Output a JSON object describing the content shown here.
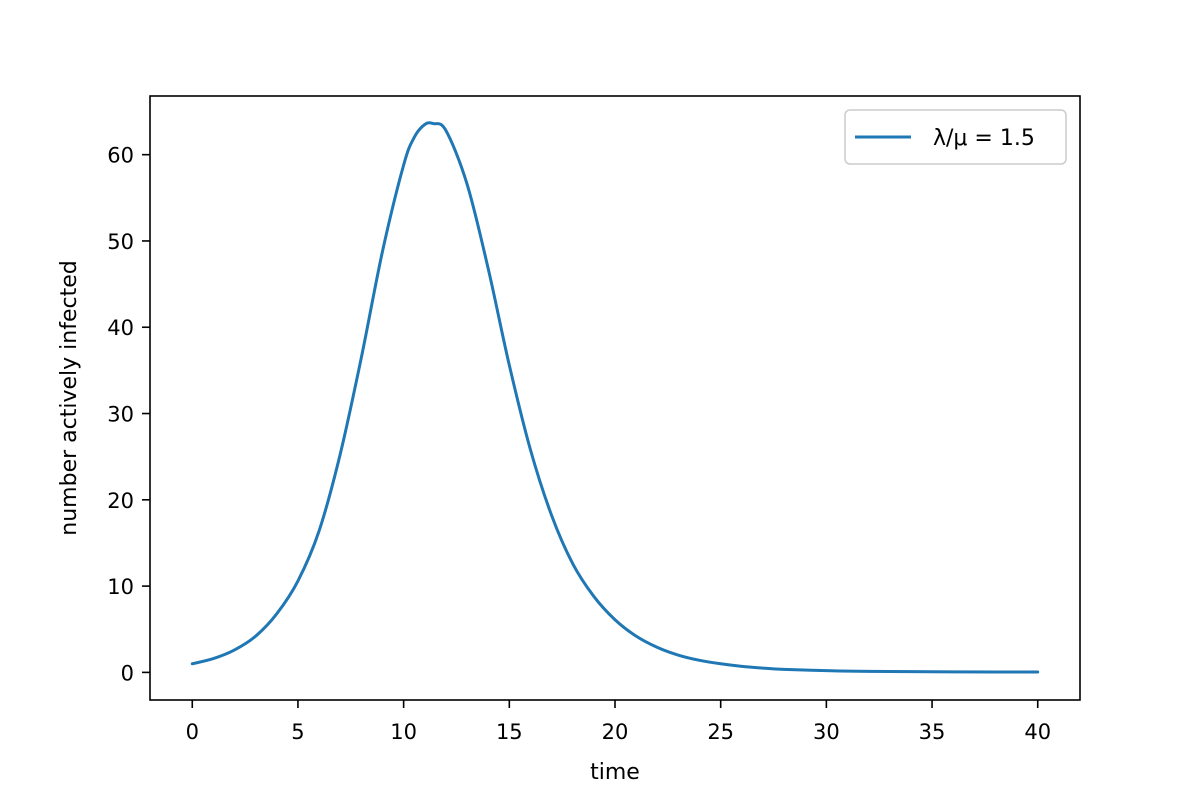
{
  "chart_data": {
    "type": "line",
    "title": "",
    "xlabel": "time",
    "ylabel": "number actively infected",
    "xlim": [
      -2,
      42
    ],
    "ylim": [
      -3.2,
      66.8
    ],
    "xticks": [
      0,
      5,
      10,
      15,
      20,
      25,
      30,
      35,
      40
    ],
    "yticks": [
      0,
      10,
      20,
      30,
      40,
      50,
      60
    ],
    "grid": false,
    "legend_position": "top-right",
    "series": [
      {
        "name": "λ/μ = 1.5",
        "color": "#1f77b4",
        "points": [
          [
            0,
            1.0
          ],
          [
            1,
            1.6
          ],
          [
            2,
            2.6
          ],
          [
            3,
            4.2
          ],
          [
            4,
            6.8
          ],
          [
            5,
            10.6
          ],
          [
            6,
            16.4
          ],
          [
            7,
            25.3
          ],
          [
            8,
            36.5
          ],
          [
            9,
            48.8
          ],
          [
            10,
            58.8
          ],
          [
            10.5,
            62.0
          ],
          [
            11,
            63.5
          ],
          [
            11.4,
            63.6
          ],
          [
            12,
            62.8
          ],
          [
            13,
            56.6
          ],
          [
            14,
            46.8
          ],
          [
            15,
            35.6
          ],
          [
            16,
            25.8
          ],
          [
            17,
            18.2
          ],
          [
            18,
            12.6
          ],
          [
            19,
            8.8
          ],
          [
            20,
            6.1
          ],
          [
            21,
            4.2
          ],
          [
            22,
            2.9
          ],
          [
            23,
            2.0
          ],
          [
            24,
            1.4
          ],
          [
            25,
            1.0
          ],
          [
            26,
            0.7
          ],
          [
            27,
            0.5
          ],
          [
            28,
            0.35
          ],
          [
            30,
            0.2
          ],
          [
            32,
            0.12
          ],
          [
            35,
            0.07
          ],
          [
            38,
            0.05
          ],
          [
            40,
            0.04
          ]
        ]
      }
    ]
  }
}
